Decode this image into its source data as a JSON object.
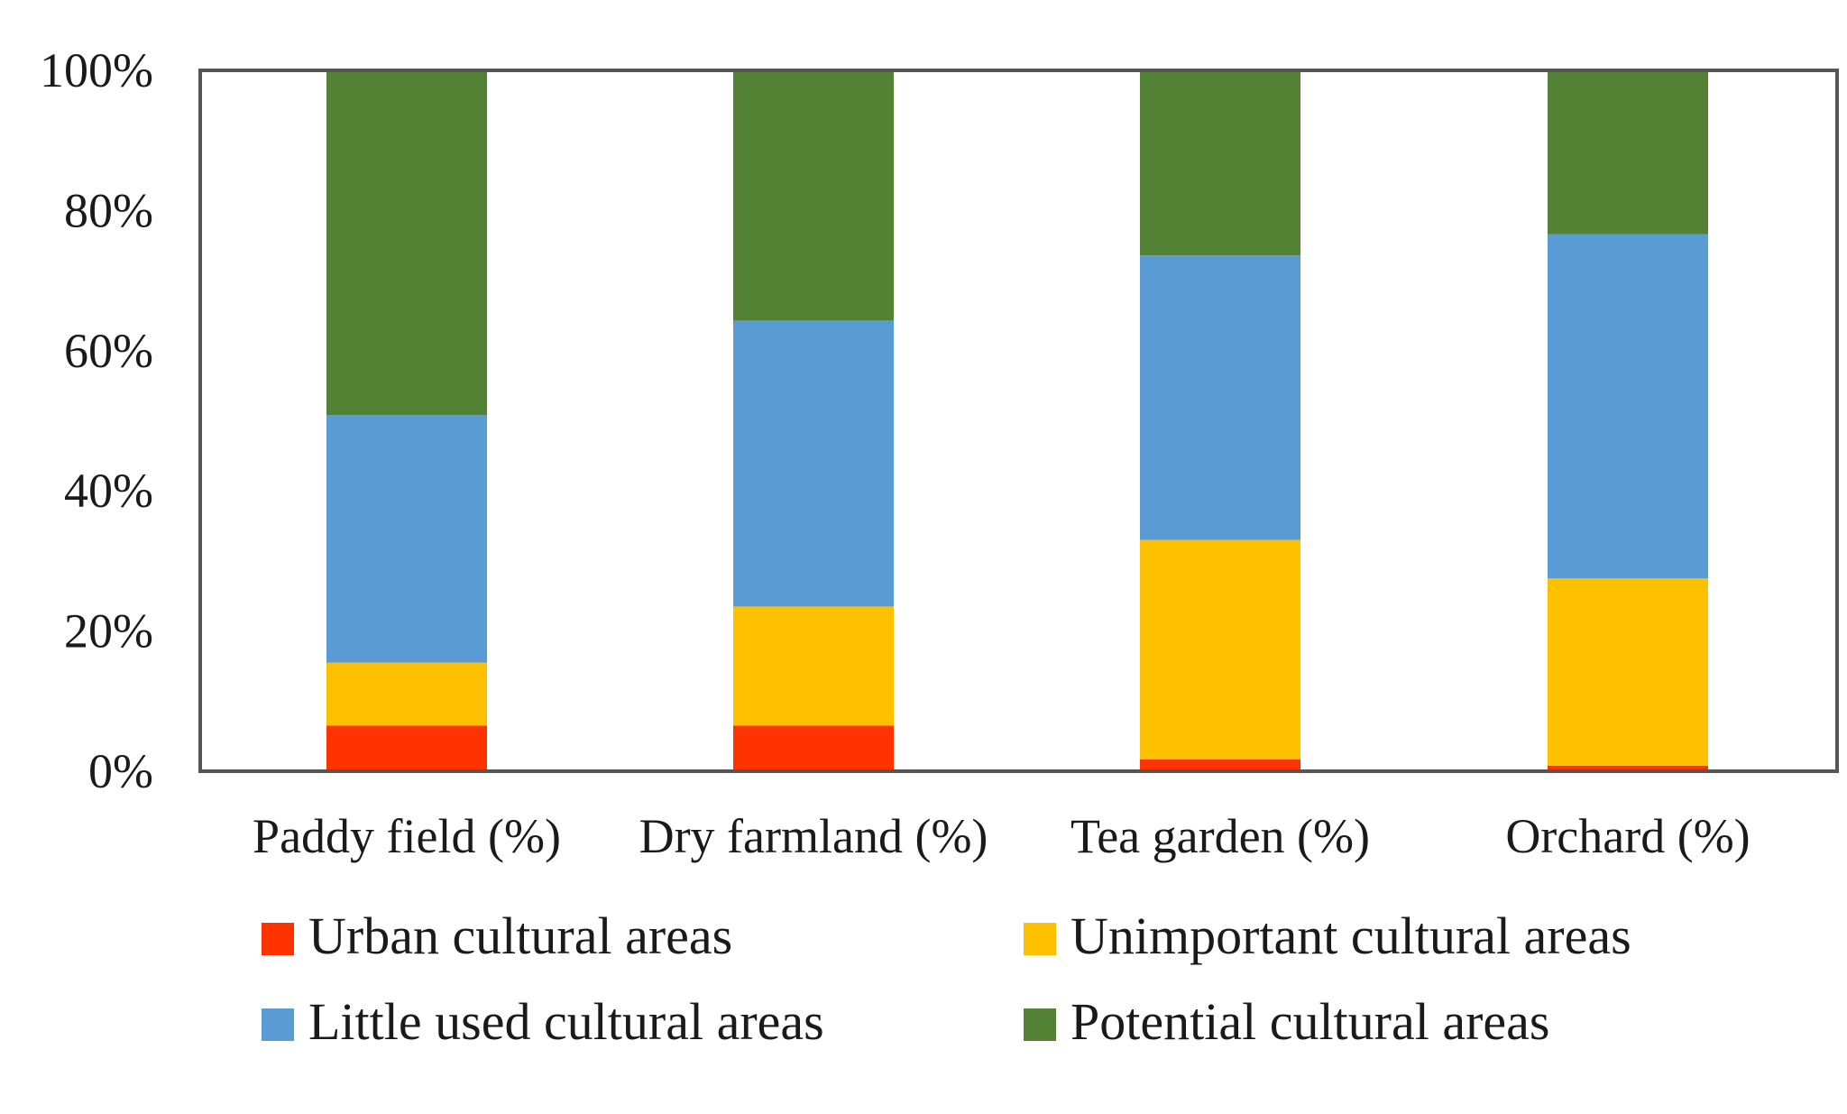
{
  "chart_data": {
    "type": "bar",
    "stacked": true,
    "percent_stacked": true,
    "title": "",
    "xlabel": "",
    "ylabel": "",
    "ylim": [
      0,
      100
    ],
    "yticks": [
      "0%",
      "20%",
      "40%",
      "60%",
      "80%",
      "100%"
    ],
    "categories": [
      "Paddy field (%)",
      "Dry farmland (%)",
      "Tea garden (%)",
      "Orchard (%)"
    ],
    "series": [
      {
        "name": "Urban cultural areas",
        "color": "#ff3300",
        "values": [
          6.5,
          6.5,
          1.7,
          0.8
        ]
      },
      {
        "name": "Unimportant cultural areas",
        "color": "#ffc000",
        "values": [
          9.0,
          17.0,
          31.3,
          26.7
        ]
      },
      {
        "name": "Little used cultural areas",
        "color": "#5b9bd5",
        "values": [
          35.3,
          40.8,
          40.6,
          49.1
        ]
      },
      {
        "name": "Potential cultural areas",
        "color": "#548235",
        "values": [
          49.2,
          35.7,
          26.4,
          23.4
        ]
      }
    ],
    "grid": false,
    "legend_position": "bottom"
  }
}
